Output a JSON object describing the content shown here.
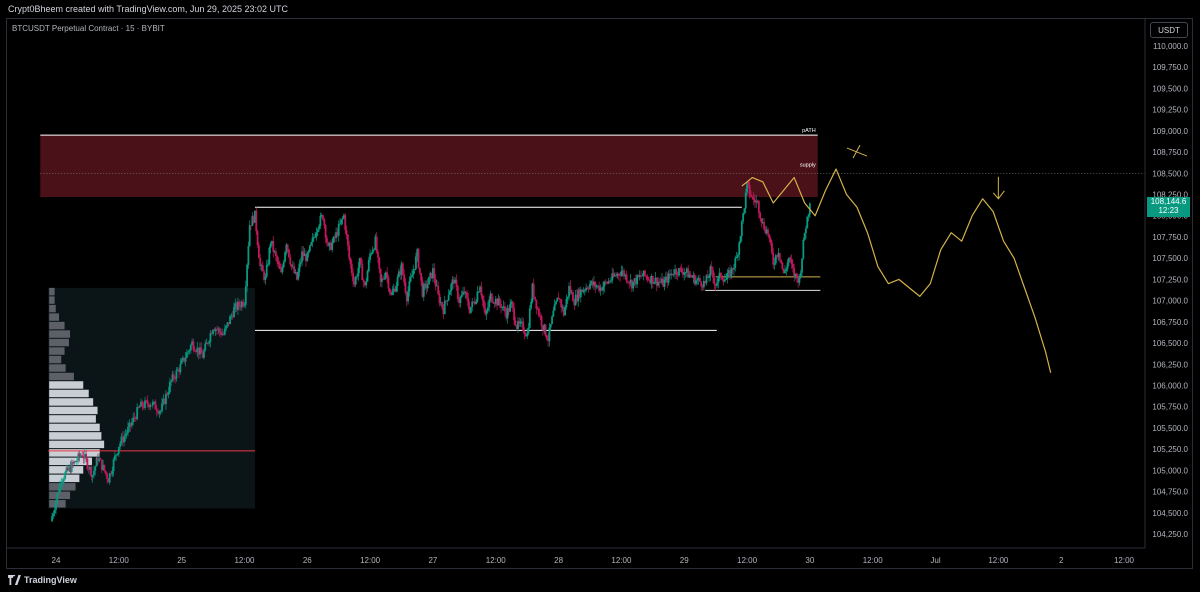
{
  "header": {
    "attribution": "Crypt0Bheem created with TradingView.com, Jun 29, 2025 23:02 UTC",
    "symbol": "BTCUSDT Perpetual Contract · 15 · BYBIT",
    "currency": "USDT"
  },
  "footer": {
    "brand": "TradingView"
  },
  "colors": {
    "up": "#089981",
    "down": "#c2185b",
    "supply_zone": "#4a1218",
    "projection": "#d4b24a",
    "range_lines": "#ffffff",
    "poc_line": "#f23645"
  },
  "chart_data": {
    "type": "candlestick",
    "title": "BTCUSDT Perpetual Contract · 15 · BYBIT",
    "y_axis": {
      "unit": "USDT",
      "range": [
        104050,
        110150
      ],
      "ticks": [
        "110,000.0",
        "109,750.0",
        "109,500.0",
        "109,250.0",
        "109,000.0",
        "108,750.0",
        "108,500.0",
        "108,250.0",
        "108,000.0",
        "107,750.0",
        "107,500.0",
        "107,250.0",
        "107,000.0",
        "106,750.0",
        "106,500.0",
        "106,250.0",
        "106,000.0",
        "105,750.0",
        "105,500.0",
        "105,250.0",
        "105,000.0",
        "104,750.0",
        "104,500.0",
        "104,250.0"
      ],
      "tick_values": [
        110000,
        109750,
        109500,
        109250,
        109000,
        108750,
        108500,
        108250,
        108000,
        107750,
        107500,
        107250,
        107000,
        106750,
        106500,
        106250,
        106000,
        105750,
        105500,
        105250,
        105000,
        104750,
        104500,
        104250
      ]
    },
    "x_axis": {
      "ticks": [
        "24",
        "12:00",
        "25",
        "12:00",
        "26",
        "12:00",
        "27",
        "12:00",
        "28",
        "12:00",
        "29",
        "12:00",
        "30",
        "12:00",
        "Jul",
        "12:00",
        "2",
        "12:00"
      ],
      "tick_hours": [
        0,
        12,
        24,
        36,
        48,
        60,
        72,
        84,
        96,
        108,
        120,
        132,
        144,
        156,
        168,
        180,
        192,
        204
      ],
      "range_hours": [
        -1.5,
        210
      ],
      "last_candle_hour": 144
    },
    "last_price": {
      "value": "108,144.6",
      "countdown": "12:23",
      "value_num": 108144.6
    },
    "price_path": [
      [
        -1,
        104400
      ],
      [
        1,
        104900
      ],
      [
        3,
        105050
      ],
      [
        5,
        105200
      ],
      [
        7,
        104950
      ],
      [
        8,
        105150
      ],
      [
        10,
        104900
      ],
      [
        12,
        105300
      ],
      [
        14,
        105500
      ],
      [
        16,
        105750
      ],
      [
        18,
        105800
      ],
      [
        20,
        105700
      ],
      [
        22,
        106050
      ],
      [
        24,
        106250
      ],
      [
        26,
        106500
      ],
      [
        28,
        106350
      ],
      [
        30,
        106700
      ],
      [
        32,
        106600
      ],
      [
        34,
        106900
      ],
      [
        36,
        107000
      ],
      [
        37,
        107900
      ],
      [
        38,
        108000
      ],
      [
        39,
        107400
      ],
      [
        40,
        107250
      ],
      [
        41,
        107700
      ],
      [
        42,
        107500
      ],
      [
        43,
        107300
      ],
      [
        44,
        107700
      ],
      [
        45,
        107400
      ],
      [
        46,
        107250
      ],
      [
        47,
        107550
      ],
      [
        48,
        107500
      ],
      [
        49,
        107700
      ],
      [
        50,
        107900
      ],
      [
        51,
        108000
      ],
      [
        52,
        107600
      ],
      [
        53,
        107700
      ],
      [
        54,
        107850
      ],
      [
        55,
        108000
      ],
      [
        56,
        107500
      ],
      [
        57,
        107200
      ],
      [
        58,
        107450
      ],
      [
        59,
        107150
      ],
      [
        60,
        107550
      ],
      [
        61,
        107700
      ],
      [
        62,
        107200
      ],
      [
        63,
        107350
      ],
      [
        64,
        107050
      ],
      [
        65,
        107200
      ],
      [
        66,
        107400
      ],
      [
        67,
        107050
      ],
      [
        68,
        107300
      ],
      [
        69,
        107550
      ],
      [
        70,
        107100
      ],
      [
        71,
        107200
      ],
      [
        72,
        107350
      ],
      [
        73,
        107050
      ],
      [
        74,
        106900
      ],
      [
        75,
        107100
      ],
      [
        76,
        107250
      ],
      [
        77,
        107000
      ],
      [
        78,
        107100
      ],
      [
        79,
        106900
      ],
      [
        80,
        107000
      ],
      [
        81,
        107200
      ],
      [
        82,
        106800
      ],
      [
        83,
        107050
      ],
      [
        84,
        107000
      ],
      [
        85,
        106950
      ],
      [
        86,
        106850
      ],
      [
        87,
        106950
      ],
      [
        88,
        106700
      ],
      [
        89,
        106700
      ],
      [
        90,
        106600
      ],
      [
        91,
        107150
      ],
      [
        92,
        106900
      ],
      [
        93,
        106700
      ],
      [
        94,
        106550
      ],
      [
        95,
        106850
      ],
      [
        96,
        107050
      ],
      [
        97,
        106850
      ],
      [
        98,
        107150
      ],
      [
        99,
        107000
      ],
      [
        100,
        107100
      ],
      [
        102,
        107200
      ],
      [
        104,
        107150
      ],
      [
        106,
        107250
      ],
      [
        108,
        107350
      ],
      [
        110,
        107200
      ],
      [
        112,
        107300
      ],
      [
        114,
        107250
      ],
      [
        116,
        107200
      ],
      [
        118,
        107350
      ],
      [
        120,
        107350
      ],
      [
        122,
        107250
      ],
      [
        124,
        107200
      ],
      [
        125,
        107350
      ],
      [
        126,
        107200
      ],
      [
        127,
        107300
      ],
      [
        128,
        107250
      ],
      [
        129,
        107350
      ],
      [
        130,
        107500
      ],
      [
        131,
        107900
      ],
      [
        132,
        108350
      ],
      [
        133,
        108200
      ],
      [
        134,
        108150
      ],
      [
        135,
        107900
      ],
      [
        136,
        107800
      ],
      [
        137,
        107450
      ],
      [
        138,
        107600
      ],
      [
        139,
        107300
      ],
      [
        140,
        107500
      ],
      [
        141,
        107300
      ],
      [
        142,
        107250
      ],
      [
        143,
        107800
      ],
      [
        144,
        108144.6
      ]
    ],
    "supply_zone": {
      "top": 108950,
      "bottom": 108220,
      "from_hour": -3,
      "to_hour": 145.5,
      "mid": 108500
    },
    "labels": {
      "path": "pATH",
      "supply": "supply"
    },
    "range": {
      "high": 108100,
      "low": 106650,
      "from_hour": 38,
      "to_high_hour": 131,
      "to_low_hour": 131
    },
    "local_lows": [
      {
        "value": 107280,
        "from_hour": 126,
        "to_hour": 146
      },
      {
        "value": 107120,
        "from_hour": 124,
        "to_hour": 146
      }
    ],
    "poc": {
      "value": 105230,
      "from_hour": -1.5,
      "to_hour": 38
    },
    "volume_profile": {
      "top_price": 107150,
      "bottom_price": 104550,
      "from_hour": -1.5,
      "to_hour": 38,
      "bins": [
        [
          107100,
          0.1
        ],
        [
          107000,
          0.1
        ],
        [
          106900,
          0.12
        ],
        [
          106800,
          0.18
        ],
        [
          106700,
          0.28
        ],
        [
          106600,
          0.38
        ],
        [
          106500,
          0.36
        ],
        [
          106400,
          0.28
        ],
        [
          106300,
          0.22
        ],
        [
          106200,
          0.3
        ],
        [
          106100,
          0.45
        ],
        [
          106000,
          0.62
        ],
        [
          105900,
          0.72
        ],
        [
          105800,
          0.8
        ],
        [
          105700,
          0.88
        ],
        [
          105600,
          0.85
        ],
        [
          105500,
          0.92
        ],
        [
          105400,
          0.95
        ],
        [
          105300,
          1.0
        ],
        [
          105200,
          0.92
        ],
        [
          105100,
          0.78
        ],
        [
          105000,
          0.62
        ],
        [
          104900,
          0.55
        ],
        [
          104800,
          0.48
        ],
        [
          104700,
          0.38
        ],
        [
          104600,
          0.3
        ]
      ]
    },
    "projection_path": [
      [
        131,
        108350
      ],
      [
        133,
        108450
      ],
      [
        135,
        108400
      ],
      [
        137,
        108150
      ],
      [
        139,
        108300
      ],
      [
        141,
        108450
      ],
      [
        143,
        108150
      ],
      [
        145,
        108000
      ],
      [
        147,
        108300
      ],
      [
        149,
        108550
      ],
      [
        151,
        108250
      ],
      [
        153,
        108100
      ],
      [
        155,
        107800
      ],
      [
        157,
        107400
      ],
      [
        159,
        107200
      ],
      [
        161,
        107250
      ],
      [
        163,
        107150
      ],
      [
        165,
        107050
      ],
      [
        167,
        107200
      ],
      [
        169,
        107600
      ],
      [
        171,
        107800
      ],
      [
        173,
        107700
      ],
      [
        175,
        108000
      ],
      [
        177,
        108200
      ],
      [
        179,
        108050
      ],
      [
        181,
        107700
      ],
      [
        183,
        107500
      ],
      [
        185,
        107150
      ],
      [
        187,
        106800
      ],
      [
        189,
        106400
      ],
      [
        190,
        106150
      ]
    ],
    "annotations": [
      {
        "type": "x-mark",
        "hour": 153,
        "value": 108750
      },
      {
        "type": "arrow-down",
        "hour": 180,
        "value": 108200
      }
    ]
  }
}
